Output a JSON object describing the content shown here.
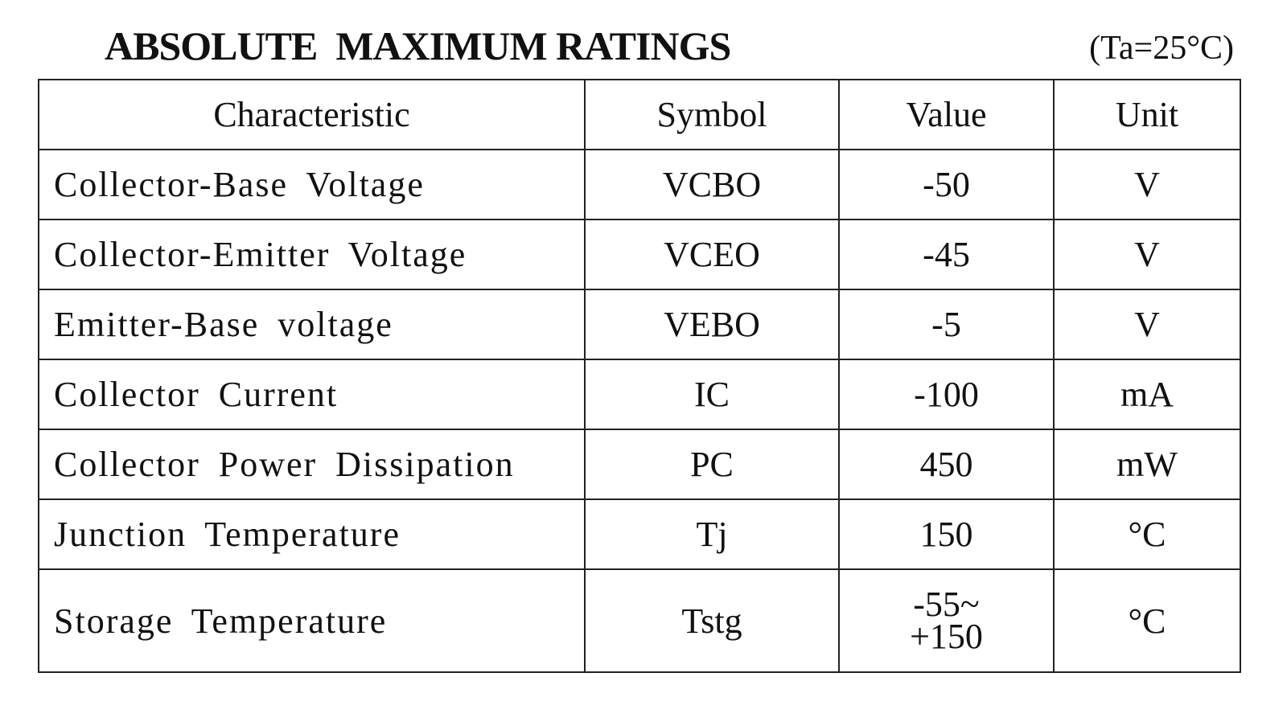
{
  "header": {
    "title": "ABSOLUTE  MAXIMUM RATINGS",
    "condition": "(Ta=25°C)"
  },
  "table": {
    "columns": [
      "Characteristic",
      "Symbol",
      "Value",
      "Unit"
    ],
    "rows": [
      [
        "Collector-Base Voltage",
        "VCBO",
        "-50",
        "V"
      ],
      [
        "Collector-Emitter Voltage",
        "VCEO",
        "-45",
        "V"
      ],
      [
        "Emitter-Base voltage",
        "VEBO",
        "-5",
        "V"
      ],
      [
        "Collector Current",
        "IC",
        "-100",
        "mA"
      ],
      [
        "Collector Power Dissipation",
        "PC",
        "450",
        "mW"
      ],
      [
        "Junction Temperature",
        "Tj",
        "150",
        "°C"
      ],
      [
        "Storage Temperature",
        "Tstg",
        [
          "-55~",
          "+150"
        ],
        "°C"
      ]
    ]
  }
}
